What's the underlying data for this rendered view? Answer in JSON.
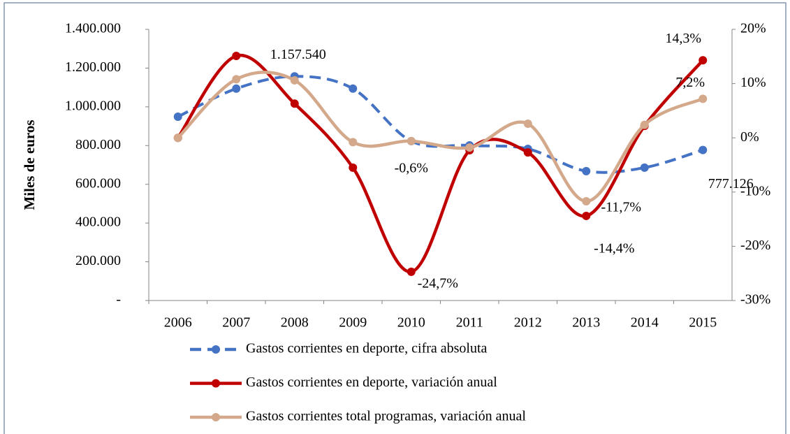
{
  "chart_data": {
    "type": "line",
    "y_label": "Miles de euros",
    "categories": [
      "2006",
      "2007",
      "2008",
      "2009",
      "2010",
      "2011",
      "2012",
      "2013",
      "2014",
      "2015"
    ],
    "ylim": [
      0,
      1400000
    ],
    "yticks": [
      {
        "value": 0,
        "label": "-"
      },
      {
        "value": 200000,
        "label": "200.000"
      },
      {
        "value": 400000,
        "label": "400.000"
      },
      {
        "value": 600000,
        "label": "600.000"
      },
      {
        "value": 800000,
        "label": "800.000"
      },
      {
        "value": 1000000,
        "label": "1.000.000"
      },
      {
        "value": 1200000,
        "label": "1.200.000"
      },
      {
        "value": 1400000,
        "label": "1.400.000"
      }
    ],
    "y2lim": [
      -30,
      20
    ],
    "y2ticks": [
      {
        "value": -30,
        "label": "-30%"
      },
      {
        "value": -20,
        "label": "-20%"
      },
      {
        "value": -10,
        "label": "-10%"
      },
      {
        "value": 0,
        "label": "0%"
      },
      {
        "value": 10,
        "label": "10%"
      },
      {
        "value": 20,
        "label": "20%"
      }
    ],
    "grid": false,
    "legend": "bottom",
    "series": [
      {
        "name": "Gastos corrientes en deporte, cifra absoluta",
        "color": "#4472c4",
        "dashed": true,
        "values": [
          949000,
          1094000,
          1157540,
          1094000,
          823000,
          801000,
          783000,
          668000,
          686000,
          777126
        ],
        "value_labels": [
          null,
          null,
          "1.157.540",
          null,
          null,
          null,
          null,
          null,
          null,
          "777.126"
        ]
      },
      {
        "name": "Gastos corrientes en deporte, variación anual",
        "color": "#c00000",
        "axis": "y2",
        "values": [
          0,
          15.1,
          6.3,
          -5.5,
          -24.7,
          -2.3,
          -2.7,
          -14.4,
          2.2,
          14.3
        ],
        "value_labels": [
          null,
          null,
          null,
          null,
          "-24,7%",
          null,
          null,
          "-14,4%",
          null,
          "14,3%"
        ]
      },
      {
        "name": "Gastos corrientes total programas, variación anual",
        "color": "#d4a88a",
        "axis": "y2",
        "values": [
          0,
          10.8,
          10.6,
          -0.8,
          -0.6,
          -1.8,
          2.6,
          -11.7,
          2.4,
          7.2
        ],
        "value_labels": [
          null,
          null,
          null,
          null,
          "-0,6%",
          null,
          null,
          "-11,7%",
          null,
          "7,2%"
        ]
      }
    ]
  }
}
